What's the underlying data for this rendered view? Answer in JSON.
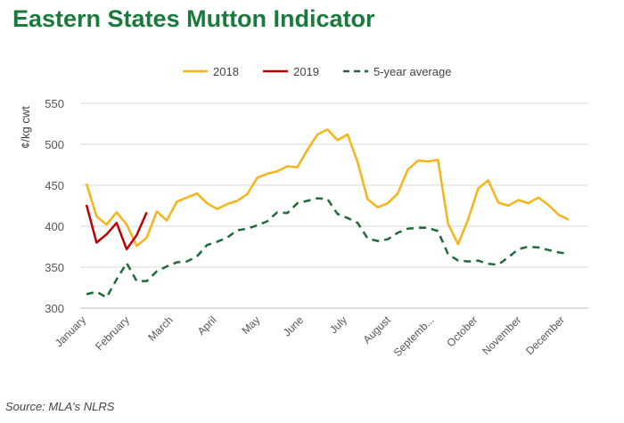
{
  "chart_data": {
    "type": "line",
    "title": "Eastern States Mutton Indicator",
    "ylabel": "¢/kg cwt",
    "xlabel": "",
    "ylim": [
      300,
      550
    ],
    "yticks": [
      300,
      350,
      400,
      450,
      500,
      550
    ],
    "grid": "horizontal",
    "legend_position": "top",
    "months": [
      "January",
      "February",
      "March",
      "April",
      "May",
      "June",
      "July",
      "August",
      "Septemb...",
      "October",
      "November",
      "December"
    ],
    "weeks_total": 52,
    "series": [
      {
        "name": "2018",
        "color": "#f5b419",
        "dash": "solid",
        "values": [
          452,
          412,
          402,
          417,
          402,
          376,
          386,
          418,
          407,
          430,
          435,
          440,
          428,
          421,
          427,
          431,
          439,
          459,
          464,
          467,
          473,
          472,
          493,
          512,
          518,
          505,
          512,
          478,
          433,
          423,
          428,
          440,
          469,
          480,
          479,
          481,
          403,
          378,
          408,
          446,
          456,
          429,
          425,
          432,
          428,
          435,
          426,
          414,
          408
        ]
      },
      {
        "name": "2019",
        "color": "#c00000",
        "dash": "solid",
        "values": [
          426,
          380,
          390,
          404,
          372,
          389,
          417
        ]
      },
      {
        "name": "5-year average",
        "color": "#1e6b3a",
        "dash": "dashed",
        "values": [
          317,
          320,
          313,
          335,
          355,
          333,
          333,
          345,
          351,
          356,
          357,
          363,
          377,
          381,
          386,
          395,
          397,
          401,
          406,
          417,
          416,
          428,
          431,
          434,
          433,
          415,
          410,
          404,
          385,
          382,
          384,
          392,
          397,
          398,
          398,
          394,
          366,
          358,
          357,
          358,
          354,
          353,
          362,
          372,
          375,
          374,
          371,
          368,
          366
        ]
      }
    ]
  },
  "source_text": "Source: MLA's NLRS"
}
